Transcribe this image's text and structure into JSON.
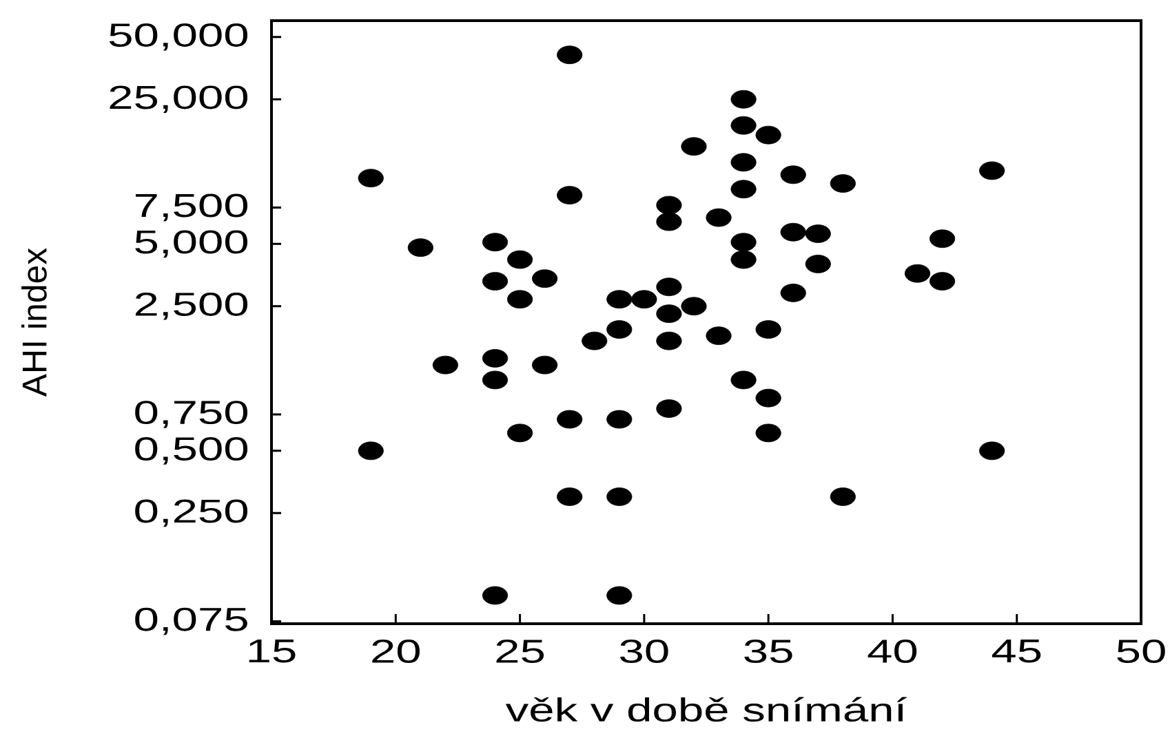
{
  "chart_data": {
    "type": "scatter",
    "xlabel": "věk v době snímání",
    "ylabel": "AHI index",
    "color": "#000000",
    "marker": "circle",
    "log": "y",
    "grid": false,
    "xlim": [
      15,
      50
    ],
    "xticks": [
      15,
      20,
      25,
      30,
      35,
      40,
      45,
      50
    ],
    "ylim": [
      0.073,
      60
    ],
    "yticks": [
      {
        "value": 0.075,
        "label": "0,075"
      },
      {
        "value": 0.25,
        "label": "0,250"
      },
      {
        "value": 0.5,
        "label": "0,500"
      },
      {
        "value": 0.75,
        "label": "0,750"
      },
      {
        "value": 2.5,
        "label": "2,500"
      },
      {
        "value": 5,
        "label": "5,000"
      },
      {
        "value": 7.5,
        "label": "7,500"
      },
      {
        "value": 25,
        "label": "25,000"
      },
      {
        "value": 50,
        "label": "50,000"
      }
    ],
    "x": [
      19,
      19,
      21,
      22,
      24,
      24,
      24,
      24,
      24,
      25,
      25,
      25,
      26,
      26,
      27,
      27,
      27,
      27,
      28,
      29,
      29,
      29,
      29,
      29,
      30,
      31,
      31,
      31,
      31,
      31,
      31,
      32,
      32,
      33,
      33,
      34,
      34,
      34,
      34,
      34,
      34,
      34,
      35,
      35,
      35,
      35,
      36,
      36,
      36,
      37,
      37,
      38,
      38,
      41,
      42,
      42,
      44,
      44
    ],
    "values": [
      10.4,
      0.5,
      4.8,
      1.3,
      5.1,
      3.3,
      1.4,
      1.1,
      0.1,
      4.2,
      2.7,
      0.61,
      3.4,
      1.3,
      41,
      8.6,
      0.71,
      0.3,
      1.7,
      2.7,
      1.93,
      0.71,
      0.3,
      0.1,
      2.7,
      7.7,
      6.4,
      3.1,
      2.3,
      1.7,
      0.8,
      14.8,
      2.5,
      6.7,
      1.8,
      25,
      18.7,
      12.4,
      9.2,
      5.1,
      4.2,
      1.1,
      16.8,
      1.93,
      0.9,
      0.61,
      10.8,
      5.7,
      2.9,
      5.6,
      4.0,
      9.8,
      0.3,
      3.6,
      5.3,
      3.3,
      11.3,
      0.5
    ]
  }
}
